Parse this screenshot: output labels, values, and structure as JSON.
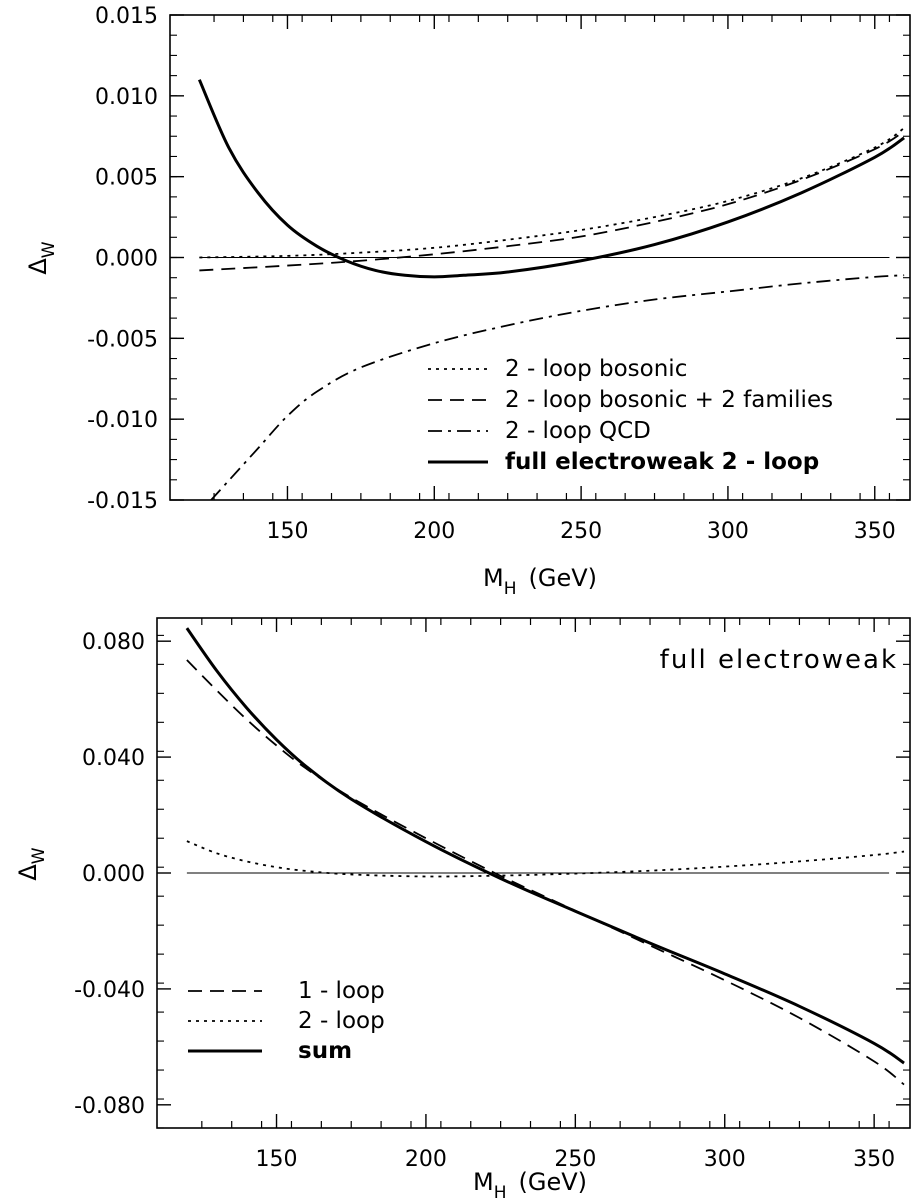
{
  "chart_data": [
    {
      "type": "line",
      "title": "",
      "xlabel": "M",
      "xlabel_sub": "H",
      "xlabel_units": "(GeV)",
      "ylabel": "Δ",
      "ylabel_sub": "W",
      "xlim": [
        110,
        362
      ],
      "ylim": [
        -0.015,
        0.015
      ],
      "xticks": [
        150,
        200,
        250,
        300,
        350
      ],
      "xtick_labels": [
        "150",
        "200",
        "250",
        "300",
        "350"
      ],
      "yticks": [
        0.015,
        0.01,
        0.005,
        0.0,
        -0.005,
        -0.01,
        -0.015
      ],
      "ytick_labels": [
        "0.015",
        "0.010",
        "0.005",
        "0.000",
        "-0.005",
        "-0.010",
        "-0.015"
      ],
      "legend_position": "bottom-right",
      "grid": false,
      "zero_line": {
        "x": [
          120,
          355
        ],
        "y": 0.0
      },
      "series": [
        {
          "name": "2 - loop bosonic",
          "style": "dotted",
          "x": [
            120,
            150,
            175,
            200,
            225,
            250,
            275,
            300,
            325,
            350,
            360
          ],
          "y": [
            0.0,
            0.0001,
            0.0003,
            0.0006,
            0.0011,
            0.0017,
            0.0025,
            0.0035,
            0.0049,
            0.0068,
            0.008
          ]
        },
        {
          "name": "2 - loop bosonic + 2 families",
          "style": "dashed",
          "x": [
            120,
            150,
            175,
            200,
            225,
            250,
            275,
            300,
            325,
            350,
            360
          ],
          "y": [
            -0.0008,
            -0.0005,
            -0.0002,
            0.0002,
            0.0007,
            0.0013,
            0.0022,
            0.0033,
            0.0048,
            0.0067,
            0.0078
          ]
        },
        {
          "name": "2 - loop QCD",
          "style": "dashdot",
          "x": [
            124,
            130,
            140,
            150,
            160,
            175,
            200,
            225,
            250,
            275,
            300,
            325,
            350,
            360
          ],
          "y": [
            -0.015,
            -0.0138,
            -0.0118,
            -0.0098,
            -0.0083,
            -0.0068,
            -0.0053,
            -0.0042,
            -0.0033,
            -0.0026,
            -0.0021,
            -0.0016,
            -0.0012,
            -0.0011
          ]
        },
        {
          "name": "full electroweak 2 - loop",
          "style": "solid-bold",
          "x": [
            120,
            130,
            140,
            150,
            160,
            170,
            180,
            190,
            200,
            210,
            225,
            250,
            275,
            300,
            325,
            350,
            360
          ],
          "y": [
            0.011,
            0.0068,
            0.004,
            0.002,
            0.0007,
            -0.0002,
            -0.0008,
            -0.0011,
            -0.0012,
            -0.0011,
            -0.0009,
            -0.0002,
            0.0008,
            0.0022,
            0.004,
            0.0062,
            0.0074
          ]
        }
      ]
    },
    {
      "type": "line",
      "title": "",
      "annotation": "full electroweak",
      "xlabel": "M",
      "xlabel_sub": "H",
      "xlabel_units": "(GeV)",
      "ylabel": "Δ",
      "ylabel_sub": "W",
      "xlim": [
        110,
        362
      ],
      "ylim": [
        -0.088,
        0.088
      ],
      "xticks": [
        150,
        200,
        250,
        300,
        350
      ],
      "xtick_labels": [
        "150",
        "200",
        "250",
        "300",
        "350"
      ],
      "yticks": [
        0.08,
        0.04,
        0.0,
        -0.04,
        -0.08
      ],
      "ytick_labels": [
        "0.080",
        "0.040",
        "0.000",
        "-0.040",
        "-0.080"
      ],
      "legend_position": "bottom-left",
      "grid": false,
      "zero_line": {
        "x": [
          120,
          355
        ],
        "y": 0.0
      },
      "series": [
        {
          "name": "1 - loop",
          "style": "dashed",
          "x": [
            120,
            130,
            140,
            150,
            160,
            175,
            200,
            225,
            250,
            275,
            300,
            325,
            350,
            360
          ],
          "y": [
            0.0735,
            0.063,
            0.053,
            0.044,
            0.036,
            0.026,
            0.012,
            -0.001,
            -0.013,
            -0.025,
            -0.037,
            -0.05,
            -0.065,
            -0.073
          ]
        },
        {
          "name": "2 - loop",
          "style": "dotted",
          "x": [
            120,
            130,
            140,
            150,
            160,
            175,
            200,
            225,
            250,
            275,
            300,
            325,
            350,
            360
          ],
          "y": [
            0.011,
            0.0068,
            0.004,
            0.002,
            0.0007,
            -0.0005,
            -0.0012,
            -0.0009,
            -0.0002,
            0.0008,
            0.0022,
            0.004,
            0.0062,
            0.0074
          ]
        },
        {
          "name": "sum",
          "style": "solid-bold",
          "x": [
            120,
            130,
            140,
            150,
            160,
            175,
            200,
            225,
            250,
            275,
            300,
            325,
            350,
            360
          ],
          "y": [
            0.0845,
            0.0698,
            0.057,
            0.046,
            0.0367,
            0.0255,
            0.0108,
            -0.0019,
            -0.0132,
            -0.0242,
            -0.0348,
            -0.046,
            -0.0588,
            -0.0656
          ]
        }
      ]
    }
  ]
}
